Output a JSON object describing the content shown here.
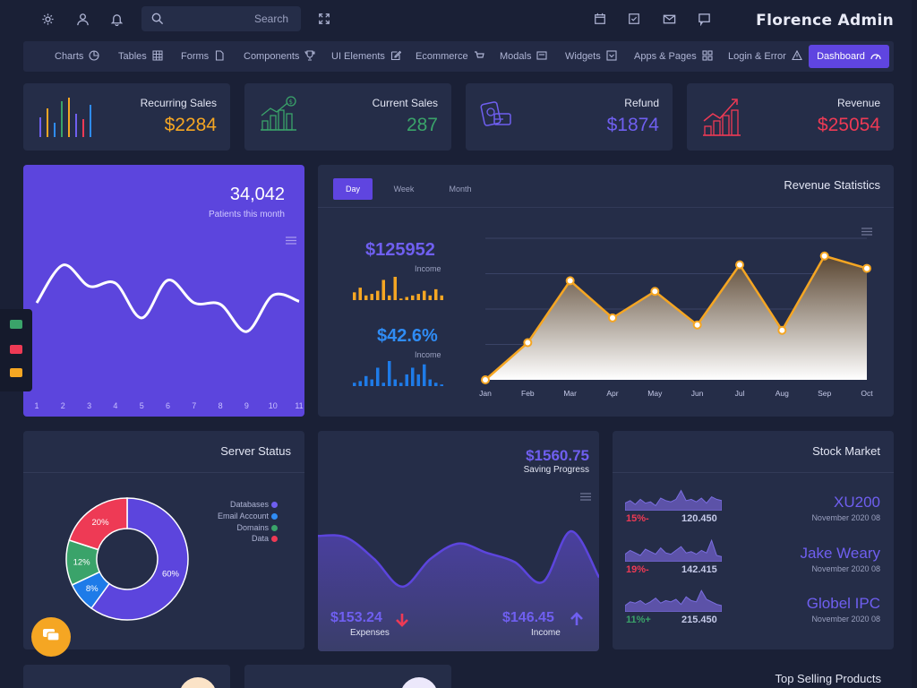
{
  "app": {
    "title": "Florence Admin"
  },
  "search": {
    "placeholder": "Search"
  },
  "menu": [
    {
      "label": "Charts",
      "icon": "pie-chart-icon"
    },
    {
      "label": "Tables",
      "icon": "grid-icon"
    },
    {
      "label": "Forms",
      "icon": "file-icon"
    },
    {
      "label": "Components",
      "icon": "trophy-icon"
    },
    {
      "label": "UI Elements",
      "icon": "edit-icon"
    },
    {
      "label": "Ecommerce",
      "icon": "cart-icon"
    },
    {
      "label": "Modals",
      "icon": "modal-icon"
    },
    {
      "label": "Widgets",
      "icon": "widget-icon"
    },
    {
      "label": "Apps & Pages",
      "icon": "apps-icon"
    },
    {
      "label": "Login & Error",
      "icon": "warning-icon"
    },
    {
      "label": "Dashboard",
      "icon": "dashboard-icon"
    }
  ],
  "stats": [
    {
      "title": "Recurring Sales",
      "value": "$2284",
      "color": "#f5a623"
    },
    {
      "title": "Current Sales",
      "value": "287",
      "color": "#3aa36a"
    },
    {
      "title": "Refund",
      "value": "$1874",
      "color": "#6f5ff0"
    },
    {
      "title": "Revenue",
      "value": "$25054",
      "color": "#ee3a55"
    }
  ],
  "patients": {
    "value": "34,042",
    "label": "Patients this month",
    "x_labels": [
      "1",
      "2",
      "3",
      "4",
      "5",
      "6",
      "7",
      "8",
      "9",
      "10",
      "11"
    ]
  },
  "revenue_stats": {
    "title": "Revenue Statistics",
    "tabs": [
      "Day",
      "Week",
      "Month"
    ],
    "active_tab": "Day",
    "income1": {
      "value": "$125952",
      "label": "Income",
      "color": "#6f5ff0",
      "bar_color": "#f5a623"
    },
    "income2": {
      "value": "$42.6%",
      "label": "Income",
      "color": "#2f8cf5",
      "bar_color": "#1e7be8"
    }
  },
  "server": {
    "title": "Server Status",
    "legend": [
      {
        "label": "Databases",
        "color": "#6f5ff0"
      },
      {
        "label": "Email Account",
        "color": "#2f8cf5"
      },
      {
        "label": "Domains",
        "color": "#3aa36a"
      },
      {
        "label": "Data",
        "color": "#ee3a55"
      }
    ]
  },
  "saving": {
    "amount": "$1560.75",
    "label": "Saving Progress",
    "expenses": {
      "value": "$153.24",
      "label": "Expenses"
    },
    "income": {
      "value": "$146.45",
      "label": "Income"
    }
  },
  "stock": {
    "title": "Stock Market",
    "items": [
      {
        "name": "XU200",
        "date": "November 2020 08",
        "pct": "15%-",
        "value": "120.450",
        "pct_color": "#ee3a55"
      },
      {
        "name": "Jake Weary",
        "date": "November 2020 08",
        "pct": "19%-",
        "value": "142.415",
        "pct_color": "#ee3a55"
      },
      {
        "name": "Globel IPC",
        "date": "November 2020 08",
        "pct": "11%+",
        "value": "215.450",
        "pct_color": "#3aa36a"
      }
    ]
  },
  "bottom": {
    "top_selling_title": "Top Selling Products"
  },
  "chart_data": [
    {
      "type": "line",
      "series": [
        {
          "values": [
            45,
            70,
            56,
            58,
            35,
            60,
            45,
            44,
            26,
            50,
            46
          ]
        }
      ],
      "x": [
        1,
        2,
        3,
        4,
        5,
        6,
        7,
        8,
        9,
        10,
        11
      ],
      "color": "#ffffff"
    },
    {
      "type": "area",
      "categories": [
        "Jan",
        "Feb",
        "Mar",
        "Apr",
        "May",
        "Jun",
        "Jul",
        "Aug",
        "Sep",
        "Oct"
      ],
      "series": [
        {
          "values": [
            0,
            42,
            112,
            70,
            100,
            62,
            130,
            56,
            140,
            126
          ]
        }
      ],
      "ylim": [
        0,
        160
      ],
      "color": "#f5a623",
      "grid": true
    },
    {
      "type": "bar",
      "values": [
        10,
        16,
        6,
        8,
        12,
        26,
        6,
        30,
        2,
        4,
        6,
        8,
        12,
        6,
        14,
        6
      ],
      "color": "#f5a623"
    },
    {
      "type": "bar",
      "values": [
        4,
        6,
        12,
        8,
        22,
        4,
        30,
        8,
        4,
        14,
        22,
        14,
        26,
        8,
        4,
        2
      ],
      "color": "#1e7be8"
    },
    {
      "type": "pie",
      "categories": [
        "Databases",
        "Email Account",
        "Domains",
        "Data"
      ],
      "values": [
        60,
        8,
        12,
        20
      ],
      "labels": [
        "60%",
        "8%",
        "12%",
        "20%"
      ],
      "colors": [
        "#5c45dd",
        "#1e7be8",
        "#3aa36a",
        "#ee3a55"
      ]
    },
    {
      "type": "area",
      "series": [
        {
          "values": [
            75,
            74,
            60,
            42,
            60,
            70,
            64,
            58,
            45,
            78,
            48
          ]
        }
      ],
      "color": "#5c45dd"
    }
  ]
}
